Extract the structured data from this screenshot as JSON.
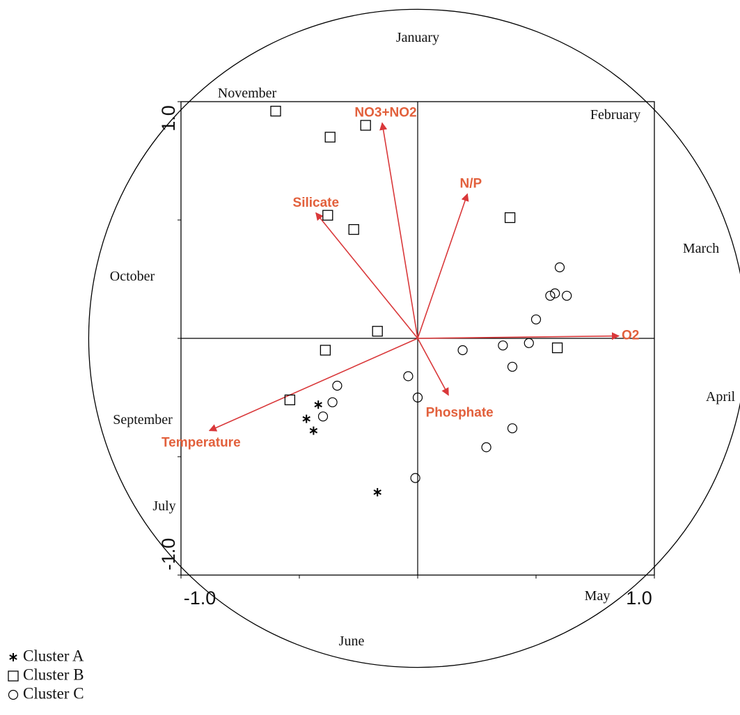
{
  "chart_data": {
    "type": "biplot",
    "xlim": [
      -1,
      1
    ],
    "ylim": [
      -1,
      1
    ],
    "xticks": [
      {
        "value": -1,
        "label": "-1.0"
      },
      {
        "value": 1,
        "label": "1.0"
      }
    ],
    "yticks": [
      {
        "value": -1,
        "label": "-1.0"
      },
      {
        "value": 1,
        "label": "1.0"
      }
    ],
    "xminorticks": [
      -0.5,
      0,
      0.5
    ],
    "yminorticks": [
      -0.5,
      0,
      0.5
    ],
    "zero_lines": true,
    "circle_radius": 1.39,
    "annotations": [
      "January",
      "February",
      "March",
      "April",
      "May",
      "June",
      "July",
      "September",
      "October",
      "November"
    ],
    "series": [
      {
        "name": "Cluster A",
        "marker": "asterisk",
        "color": "#000000",
        "x": [
          -0.42,
          -0.47,
          -0.44,
          -0.17
        ],
        "values": [
          -0.28,
          -0.34,
          -0.39,
          -0.65
        ]
      },
      {
        "name": "Cluster B",
        "marker": "square",
        "color": "#000000",
        "x": [
          -0.6,
          -0.22,
          -0.37,
          -0.38,
          -0.27,
          0.39,
          -0.17,
          -0.39,
          -0.54,
          0.59
        ],
        "values": [
          0.96,
          0.9,
          0.85,
          0.52,
          0.46,
          0.51,
          0.03,
          -0.05,
          -0.26,
          -0.04
        ]
      },
      {
        "name": "Cluster C",
        "marker": "circle",
        "color": "#000000",
        "x": [
          0.6,
          0.56,
          0.58,
          0.63,
          0.5,
          0.19,
          0.36,
          0.47,
          0.4,
          -0.04,
          -0.34,
          -0.36,
          -0.4,
          0.0,
          0.4,
          0.29,
          -0.01
        ],
        "values": [
          0.3,
          0.18,
          0.19,
          0.18,
          0.08,
          -0.05,
          -0.03,
          -0.02,
          -0.12,
          -0.16,
          -0.2,
          -0.27,
          -0.33,
          -0.25,
          -0.38,
          -0.46,
          -0.59
        ]
      }
    ],
    "vector_color": "#d9383a",
    "vector_label_color": "#e2603c",
    "vectors": [
      {
        "name": "NO3+NO2",
        "x": -0.15,
        "y": 0.91
      },
      {
        "name": "N/P",
        "x": 0.21,
        "y": 0.61
      },
      {
        "name": "Silicate",
        "x": -0.43,
        "y": 0.53
      },
      {
        "name": "O2",
        "x": 0.85,
        "y": 0.01
      },
      {
        "name": "Phosphate",
        "x": 0.13,
        "y": -0.24
      },
      {
        "name": "Temperature",
        "x": -0.88,
        "y": -0.39
      }
    ]
  }
}
